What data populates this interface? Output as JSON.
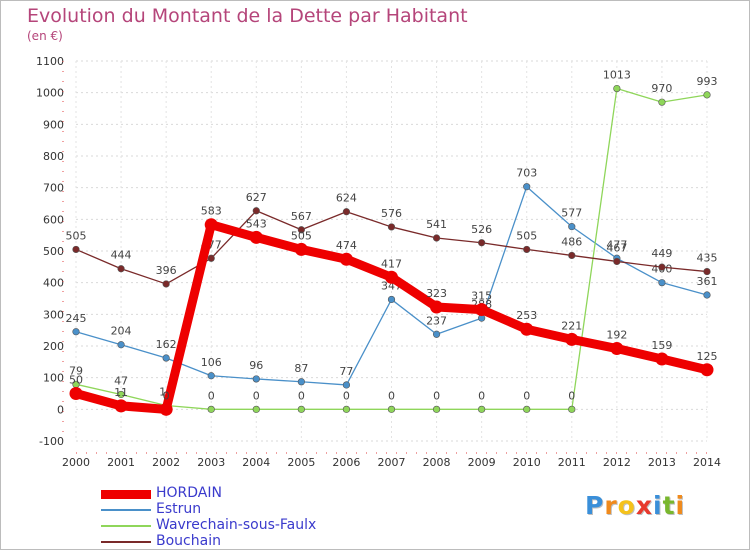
{
  "header": {
    "title": "Evolution du Montant de la Dette par Habitant",
    "unit": "(en €)"
  },
  "logo": {
    "text": "Proxiti",
    "letters": [
      "P",
      "r",
      "o",
      "x",
      "i",
      "t",
      "i"
    ],
    "colors": [
      "#3a8fd9",
      "#f08a1c",
      "#f5c21b",
      "#e8392d",
      "#3a8fd9",
      "#79b72e",
      "#f08a1c"
    ]
  },
  "chart_data": {
    "type": "line",
    "x": [
      2000,
      2001,
      2002,
      2003,
      2004,
      2005,
      2006,
      2007,
      2008,
      2009,
      2010,
      2011,
      2012,
      2013,
      2014
    ],
    "ylim": [
      -100,
      1100
    ],
    "yticks": [
      -100,
      0,
      100,
      200,
      300,
      400,
      500,
      600,
      700,
      800,
      900,
      1000,
      1100
    ],
    "grid": true,
    "legend_position": "bottom-left",
    "series": [
      {
        "name": "HORDAIN",
        "color": "#ee0000",
        "values": [
          50,
          11,
          0,
          583,
          543,
          505,
          474,
          417,
          323,
          315,
          253,
          221,
          192,
          159,
          125
        ]
      },
      {
        "name": "Estrun",
        "color": "#4a90c9",
        "values": [
          245,
          204,
          162,
          106,
          96,
          87,
          77,
          347,
          237,
          288,
          703,
          577,
          477,
          400,
          361
        ]
      },
      {
        "name": "Wavrechain-sous-Faulx",
        "color": "#8fd65a",
        "values": [
          79,
          47,
          12,
          0,
          0,
          0,
          0,
          0,
          0,
          0,
          0,
          0,
          1013,
          970,
          993
        ]
      },
      {
        "name": "Bouchain",
        "color": "#7a2a2a",
        "values": [
          505,
          444,
          396,
          477,
          627,
          567,
          624,
          576,
          541,
          526,
          505,
          486,
          467,
          449,
          435
        ]
      }
    ]
  }
}
